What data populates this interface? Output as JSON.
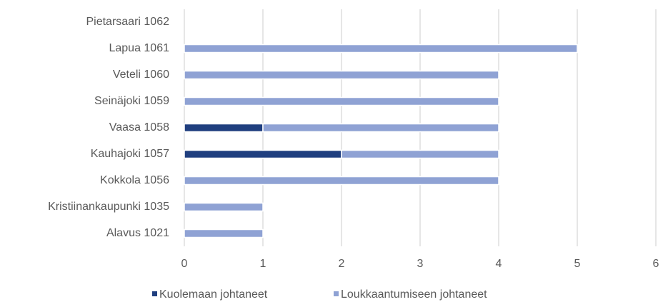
{
  "chart_data": {
    "type": "bar",
    "orientation": "horizontal",
    "stacked": true,
    "categories": [
      "Pietarsaari 1062",
      "Lapua 1061",
      "Veteli 1060",
      "Seinäjoki 1059",
      "Vaasa 1058",
      "Kauhajoki 1057",
      "Kokkola 1056",
      "Kristiinankaupunki 1035",
      "Alavus 1021"
    ],
    "series": [
      {
        "name": "Kuolemaan johtaneet",
        "color": "#203f7f",
        "values": [
          0,
          0,
          0,
          0,
          1,
          2,
          0,
          0,
          0
        ]
      },
      {
        "name": "Loukkaantumiseen johtaneet",
        "color": "#8fa2d4",
        "values": [
          0,
          5,
          4,
          4,
          3,
          2,
          4,
          1,
          1
        ]
      }
    ],
    "xlim": [
      0,
      6
    ],
    "xticks": [
      0,
      1,
      2,
      3,
      4,
      5,
      6
    ],
    "grid": true,
    "legend": "bottom"
  }
}
